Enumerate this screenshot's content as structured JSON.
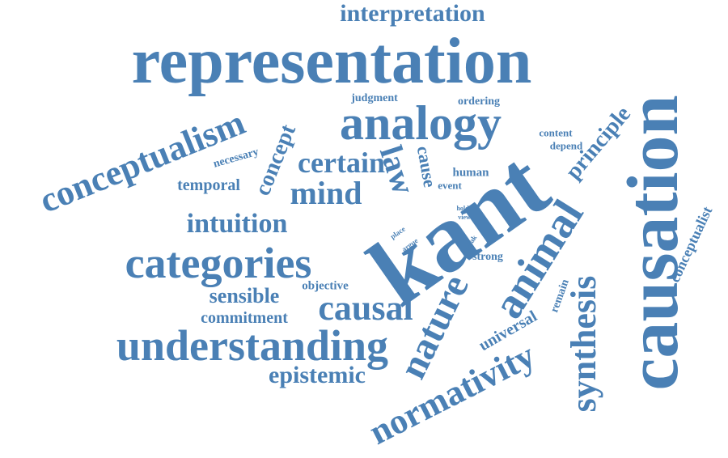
{
  "theme": {
    "word_color": "#4a80b5",
    "background": "#ffffff"
  },
  "words": {
    "interpretation": "interpretation",
    "representation": "representation",
    "analogy": "analogy",
    "judgment": "judgment",
    "ordering": "ordering",
    "conceptualism": "conceptualism",
    "causation": "causation",
    "principle": "principle",
    "content": "content",
    "depend": "depend",
    "concept": "concept",
    "necessary": "necessary",
    "certain": "certain",
    "law": "law",
    "cause": "cause",
    "human": "human",
    "event": "event",
    "temporal": "temporal",
    "mind": "mind",
    "kant": "kant",
    "animal": "animal",
    "intuition": "intuition",
    "hold": "hold",
    "view": "view",
    "place": "place",
    "argue": "argue",
    "weak": "weak",
    "strong": "strong",
    "categories": "categories",
    "conceptualist": "conceptualist",
    "synthesis": "synthesis",
    "remain": "remain",
    "sensible": "sensible",
    "objective": "objective",
    "nature": "nature",
    "commitment": "commitment",
    "causal": "causal",
    "universal": "universal",
    "understanding": "understanding",
    "normativity": "normativity",
    "epistemic": "epistemic"
  }
}
